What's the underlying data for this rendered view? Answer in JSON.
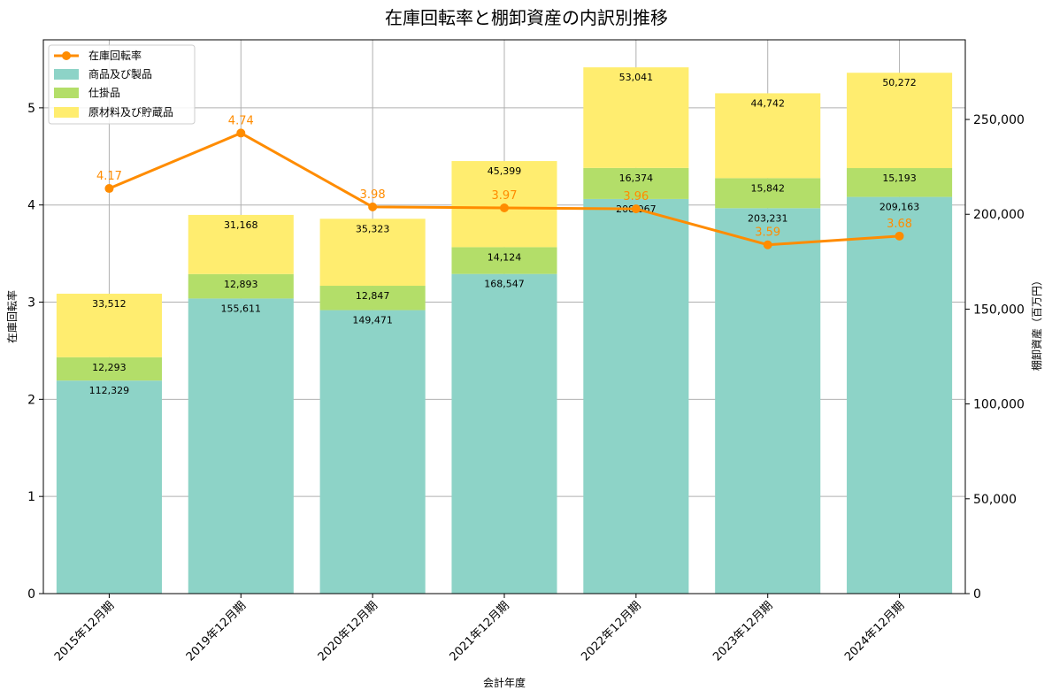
{
  "chart_data": {
    "type": "bar",
    "title": "在庫回転率と棚卸資産の内訳別推移",
    "xlabel": "会計年度",
    "ylabel_left": "在庫回転率",
    "ylabel_right": "棚卸資産（百万円）",
    "categories": [
      "2015年12月期",
      "2019年12月期",
      "2020年12月期",
      "2021年12月期",
      "2022年12月期",
      "2023年12月期",
      "2024年12月期"
    ],
    "bar_series": [
      {
        "name": "商品及び製品",
        "values": [
          112329,
          155611,
          149471,
          168547,
          208067,
          203231,
          209163
        ],
        "labels": [
          "112,329",
          "155,611",
          "149,471",
          "168,547",
          "208,067",
          "203,231",
          "209,163"
        ],
        "color": "#8dd3c7"
      },
      {
        "name": "仕掛品",
        "values": [
          12293,
          12893,
          12847,
          14124,
          16374,
          15842,
          15193
        ],
        "labels": [
          "12,293",
          "12,893",
          "12,847",
          "14,124",
          "16,374",
          "15,842",
          "15,193"
        ],
        "color": "#b3de69"
      },
      {
        "name": "原材料及び貯蔵品",
        "values": [
          33512,
          31168,
          35323,
          45399,
          53041,
          44742,
          50272
        ],
        "labels": [
          "33,512",
          "31,168",
          "35,323",
          "45,399",
          "53,041",
          "44,742",
          "50,272"
        ],
        "color": "#ffed6f"
      }
    ],
    "line_series": {
      "name": "在庫回転率",
      "values": [
        4.17,
        4.74,
        3.98,
        3.97,
        3.96,
        3.59,
        3.68
      ],
      "labels": [
        "4.17",
        "4.74",
        "3.98",
        "3.97",
        "3.96",
        "3.59",
        "3.68"
      ],
      "color": "#ff8c00"
    },
    "ylim_left": [
      0,
      5.7
    ],
    "yticks_left": [
      0,
      1,
      2,
      3,
      4,
      5
    ],
    "yticks_left_labels": [
      "0",
      "1",
      "2",
      "3",
      "4",
      "5"
    ],
    "ylim_right": [
      0,
      292000
    ],
    "yticks_right": [
      0,
      50000,
      100000,
      150000,
      200000,
      250000
    ],
    "yticks_right_labels": [
      "0",
      "50,000",
      "100,000",
      "150,000",
      "200,000",
      "250,000"
    ],
    "grid": true,
    "legend_position": "upper-left"
  }
}
